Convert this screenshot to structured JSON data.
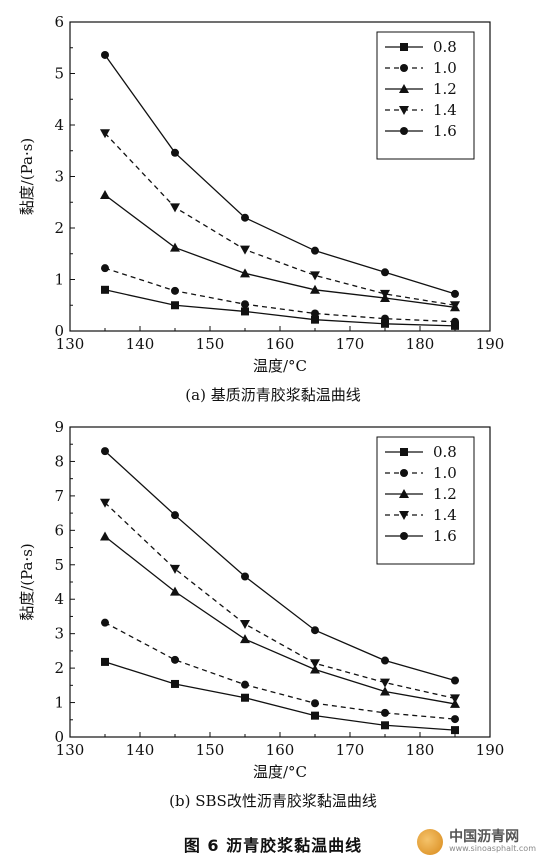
{
  "figure_title": "图 6    沥青胶浆黏温曲线",
  "watermark": {
    "name": "中国沥青网",
    "url": "www.sinoasphalt.com"
  },
  "chart_data": [
    {
      "type": "line",
      "caption": "(a) 基质沥青胶浆黏温曲线",
      "xlabel": "温度/°C",
      "ylabel": "黏度/(Pa·s)",
      "xlim": [
        130,
        190
      ],
      "ylim": [
        0,
        6
      ],
      "xticks": [
        130,
        140,
        150,
        160,
        170,
        180,
        190
      ],
      "yticks": [
        0,
        1,
        2,
        3,
        4,
        5,
        6
      ],
      "legend_position": "top-right",
      "grid": false,
      "x": [
        135,
        145,
        155,
        165,
        175,
        185
      ],
      "series": [
        {
          "name": "0.8",
          "marker": "square",
          "dash": "solid",
          "values": [
            0.8,
            0.5,
            0.38,
            0.22,
            0.14,
            0.1
          ]
        },
        {
          "name": "1.0",
          "marker": "circle",
          "dash": "dashed",
          "values": [
            1.22,
            0.78,
            0.52,
            0.34,
            0.24,
            0.18
          ]
        },
        {
          "name": "1.2",
          "marker": "triangle-up",
          "dash": "solid",
          "values": [
            2.64,
            1.62,
            1.12,
            0.8,
            0.64,
            0.46
          ]
        },
        {
          "name": "1.4",
          "marker": "triangle-down",
          "dash": "dashed",
          "values": [
            3.84,
            2.4,
            1.58,
            1.08,
            0.72,
            0.5
          ]
        },
        {
          "name": "1.6",
          "marker": "circle",
          "dash": "solid",
          "values": [
            5.36,
            3.46,
            2.2,
            1.56,
            1.14,
            0.72
          ]
        }
      ]
    },
    {
      "type": "line",
      "caption": "(b) SBS改性沥青胶浆黏温曲线",
      "xlabel": "温度/°C",
      "ylabel": "黏度/(Pa·s)",
      "xlim": [
        130,
        190
      ],
      "ylim": [
        0,
        9
      ],
      "xticks": [
        130,
        140,
        150,
        160,
        170,
        180,
        190
      ],
      "yticks": [
        0,
        1,
        2,
        3,
        4,
        5,
        6,
        7,
        8,
        9
      ],
      "legend_position": "top-right",
      "grid": false,
      "x": [
        135,
        145,
        155,
        165,
        175,
        185
      ],
      "series": [
        {
          "name": "0.8",
          "marker": "square",
          "dash": "solid",
          "values": [
            2.18,
            1.54,
            1.14,
            0.62,
            0.34,
            0.2
          ]
        },
        {
          "name": "1.0",
          "marker": "circle",
          "dash": "dashed",
          "values": [
            3.32,
            2.24,
            1.52,
            0.98,
            0.7,
            0.52
          ]
        },
        {
          "name": "1.2",
          "marker": "triangle-up",
          "dash": "solid",
          "values": [
            5.82,
            4.22,
            2.84,
            1.96,
            1.32,
            0.96
          ]
        },
        {
          "name": "1.4",
          "marker": "triangle-down",
          "dash": "dashed",
          "values": [
            6.8,
            4.88,
            3.28,
            2.14,
            1.58,
            1.12
          ]
        },
        {
          "name": "1.6",
          "marker": "circle",
          "dash": "solid",
          "values": [
            8.3,
            6.44,
            4.66,
            3.1,
            2.22,
            1.64
          ]
        }
      ]
    }
  ]
}
